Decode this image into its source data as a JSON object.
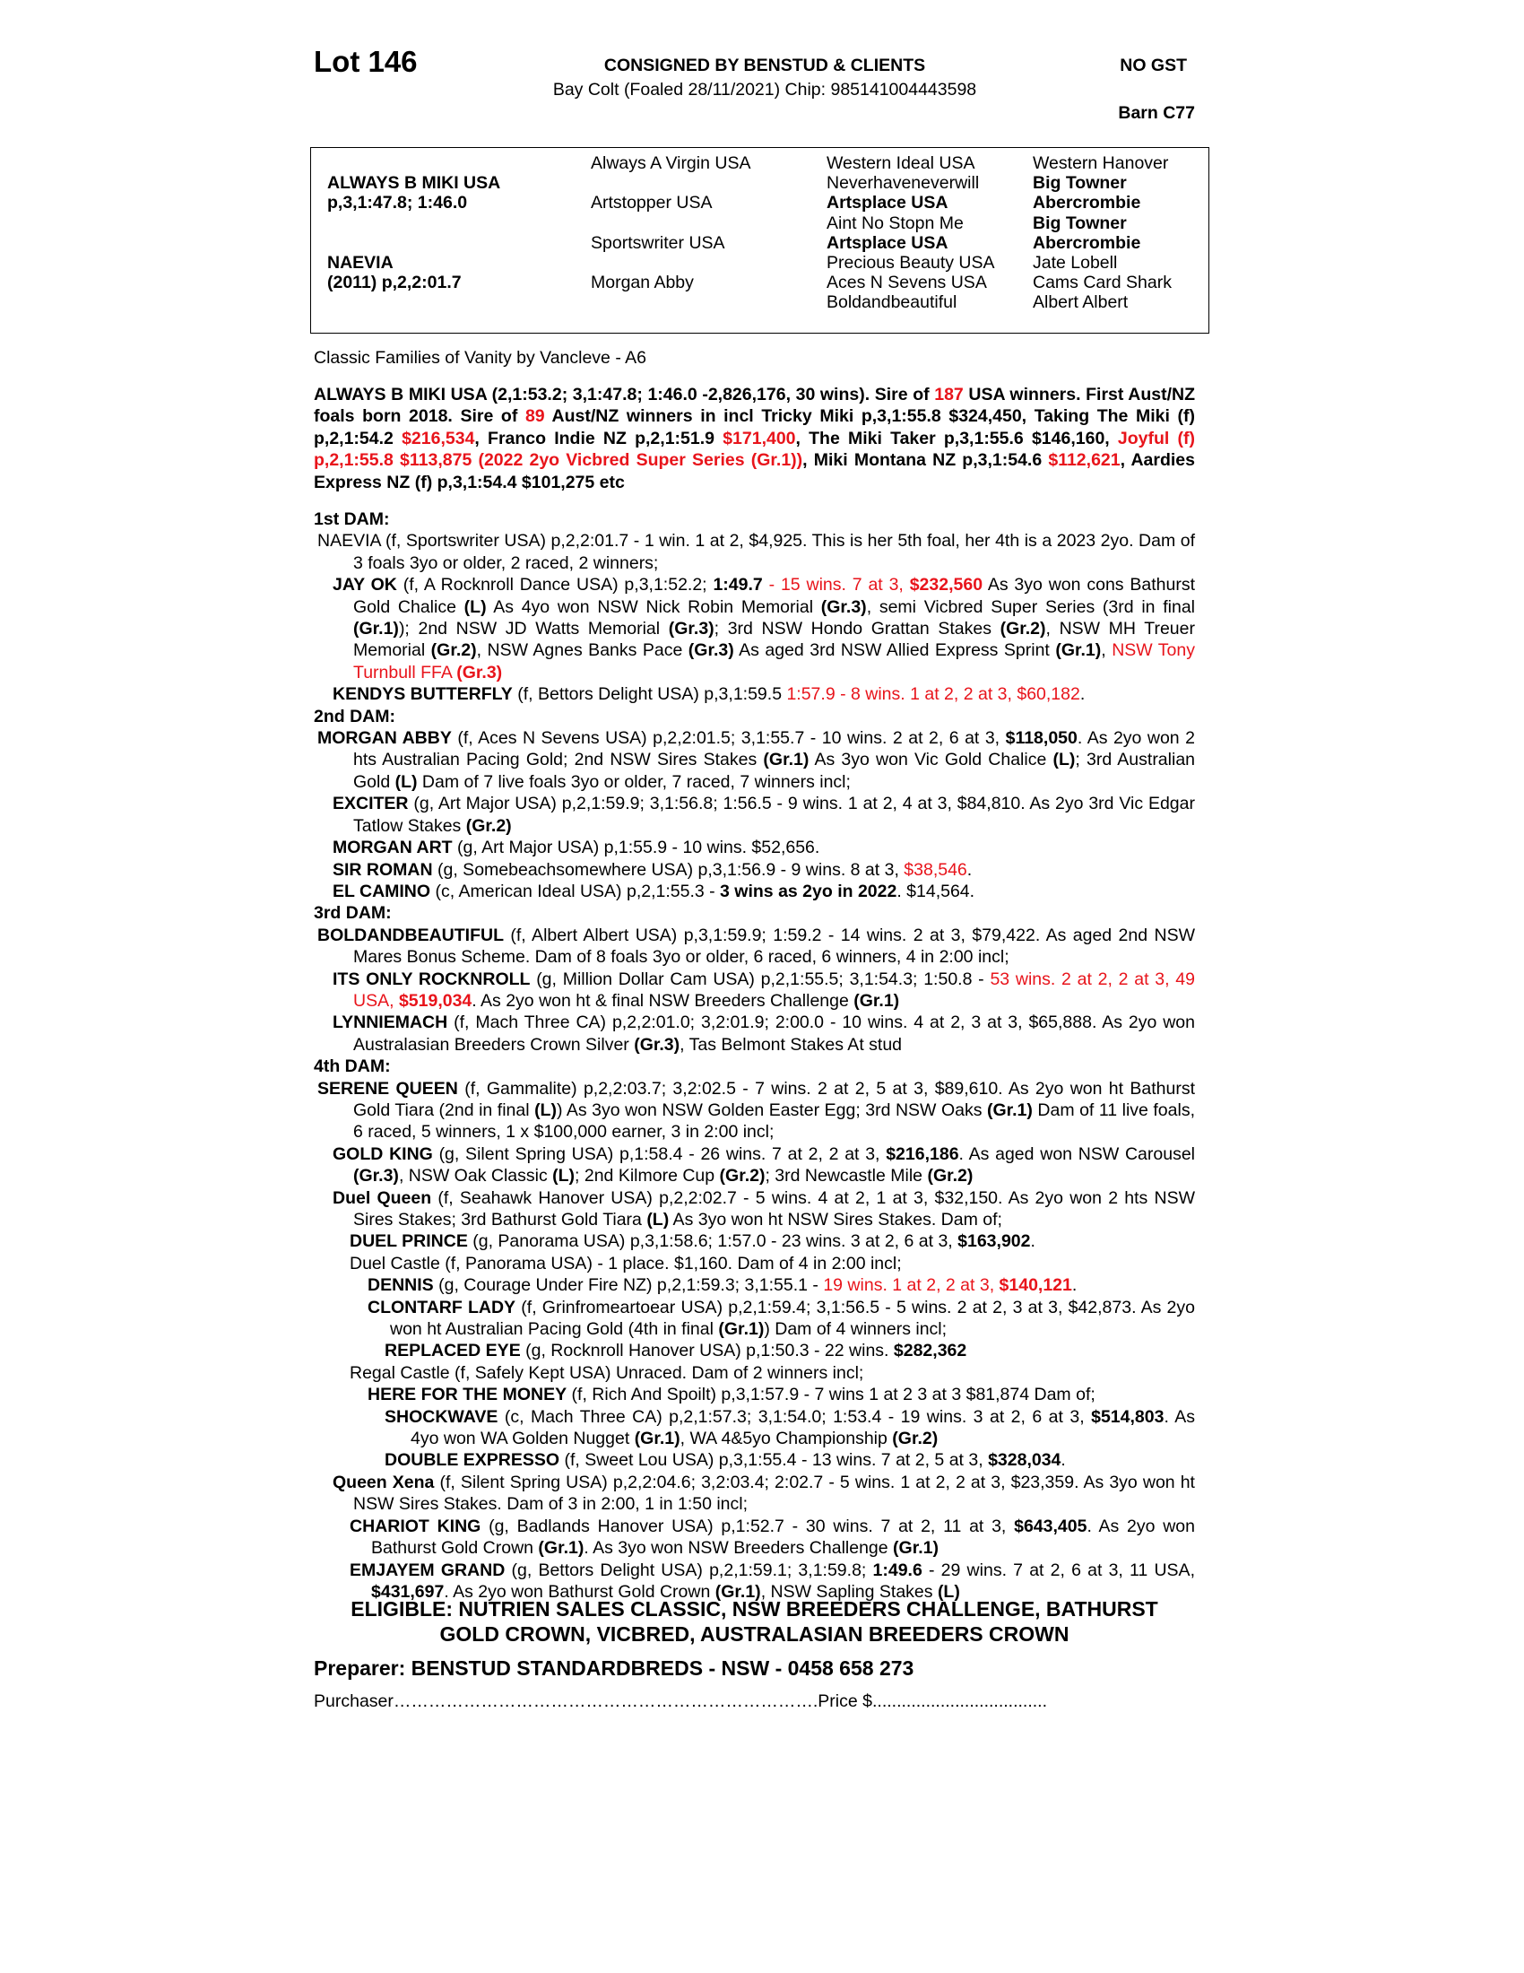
{
  "header": {
    "lot": "Lot 146",
    "consigned": "CONSIGNED BY BENSTUD & CLIENTS",
    "gst": "NO GST",
    "description": "Bay Colt (Foaled 28/11/2021) Chip: 985141004443598",
    "barn": "Barn C77"
  },
  "pedigree": {
    "col1": [
      {
        "row": 2,
        "t": "ALWAYS B MIKI USA",
        "b": true
      },
      {
        "row": 3,
        "t": "p,3,1:47.8; 1:46.0",
        "b": true
      },
      {
        "row": 6,
        "t": "NAEVIA",
        "b": true
      },
      {
        "row": 7,
        "t": "(2011) p,2,2:01.7",
        "b": true
      }
    ],
    "col2": [
      {
        "row": 1,
        "t": "Always A Virgin USA",
        "b": false
      },
      {
        "row": 3,
        "t": "Artstopper USA",
        "b": false
      },
      {
        "row": 5,
        "t": "Sportswriter USA",
        "b": false
      },
      {
        "row": 7,
        "t": "Morgan Abby",
        "b": false
      }
    ],
    "col3": [
      {
        "row": 1,
        "t": "Western Ideal USA",
        "b": false
      },
      {
        "row": 2,
        "t": "Neverhaveneverwill",
        "b": false
      },
      {
        "row": 3,
        "t": "Artsplace USA",
        "b": true
      },
      {
        "row": 4,
        "t": "Aint No Stopn Me",
        "b": false
      },
      {
        "row": 5,
        "t": "Artsplace USA",
        "b": true
      },
      {
        "row": 6,
        "t": "Precious Beauty USA",
        "b": false
      },
      {
        "row": 7,
        "t": "Aces N Sevens USA",
        "b": false
      },
      {
        "row": 8,
        "t": "Boldandbeautiful",
        "b": false
      }
    ],
    "col4": [
      {
        "row": 1,
        "t": "Western Hanover",
        "b": false
      },
      {
        "row": 2,
        "t": "Big Towner",
        "b": true
      },
      {
        "row": 3,
        "t": "Abercrombie",
        "b": true
      },
      {
        "row": 4,
        "t": "Big Towner",
        "b": true
      },
      {
        "row": 5,
        "t": "Abercrombie",
        "b": true
      },
      {
        "row": 6,
        "t": "Jate Lobell",
        "b": false
      },
      {
        "row": 7,
        "t": "Cams Card Shark",
        "b": false
      },
      {
        "row": 8,
        "t": "Albert Albert",
        "b": false
      }
    ]
  },
  "family": "Classic Families of Vanity by Vancleve - A6",
  "colors": {
    "highlight": "#e8141b",
    "text": "#000000"
  },
  "sire_paragraph": [
    {
      "t": "ALWAYS B MIKI USA (2,1:53.2; 3,1:47.8; 1:46.0 -2,826,176, 30 wins). Sire of ",
      "s": "b"
    },
    {
      "t": "187",
      "s": "br"
    },
    {
      "t": " USA winners. First Aust/NZ foals born 2018. Sire of ",
      "s": "b"
    },
    {
      "t": "89",
      "s": "br"
    },
    {
      "t": " Aust/NZ winners in incl Tricky Miki p,3,1:55.8 $324,450, Taking The Miki (f) p,2,1:54.2 ",
      "s": "b"
    },
    {
      "t": "$216,534",
      "s": "br"
    },
    {
      "t": ", Franco Indie NZ p,2,1:51.9 ",
      "s": "b"
    },
    {
      "t": "$171,400",
      "s": "br"
    },
    {
      "t": ", The Miki Taker p,3,1:55.6 $146,160, ",
      "s": "b"
    },
    {
      "t": "Joyful (f) p,2,1:55.8 $113,875 (2022 2yo Vicbred Super Series (Gr.1))",
      "s": "br"
    },
    {
      "t": ", Miki Montana NZ p,3,1:54.6 ",
      "s": "b"
    },
    {
      "t": "$112,621",
      "s": "br"
    },
    {
      "t": ", Aardies Express NZ (f) p,3,1:54.4 $101,275 etc",
      "s": "b"
    }
  ],
  "sections": [
    {
      "lvl": "h",
      "runs": [
        {
          "t": "1st DAM:",
          "s": "b"
        }
      ]
    },
    {
      "lvl": "l0",
      "runs": [
        {
          "t": "NAEVIA (f, Sportswriter USA) p,2,2:01.7 - 1 win. 1 at 2, $4,925. This is her 5th foal, her 4th is a 2023 2yo. Dam of 3 foals 3yo or older, 2 raced, 2 winners;",
          "s": ""
        }
      ]
    },
    {
      "lvl": "l1",
      "runs": [
        {
          "t": "JAY OK",
          "s": "b"
        },
        {
          "t": " (f, A Rocknroll Dance USA) p,3,1:52.2; ",
          "s": ""
        },
        {
          "t": "1:49.7",
          "s": "b"
        },
        {
          "t": " - 15 wins. 7 at 3, ",
          "s": "r"
        },
        {
          "t": "$232,560",
          "s": "br"
        },
        {
          "t": " As 3yo won cons Bathurst Gold Chalice ",
          "s": ""
        },
        {
          "t": "(L)",
          "s": "b"
        },
        {
          "t": " As 4yo won NSW Nick Robin Memorial ",
          "s": ""
        },
        {
          "t": "(Gr.3)",
          "s": "b"
        },
        {
          "t": ", semi Vicbred Super Series (3rd in final ",
          "s": ""
        },
        {
          "t": "(Gr.1)",
          "s": "b"
        },
        {
          "t": "); 2nd NSW JD Watts Memorial ",
          "s": ""
        },
        {
          "t": "(Gr.3)",
          "s": "b"
        },
        {
          "t": "; 3rd NSW Hondo Grattan Stakes ",
          "s": ""
        },
        {
          "t": "(Gr.2)",
          "s": "b"
        },
        {
          "t": ", NSW MH Treuer Memorial ",
          "s": ""
        },
        {
          "t": "(Gr.2)",
          "s": "b"
        },
        {
          "t": ", NSW Agnes Banks Pace ",
          "s": ""
        },
        {
          "t": "(Gr.3)",
          "s": "b"
        },
        {
          "t": " As aged 3rd NSW Allied Express Sprint ",
          "s": ""
        },
        {
          "t": "(Gr.1)",
          "s": "b"
        },
        {
          "t": ", ",
          "s": ""
        },
        {
          "t": "NSW Tony Turnbull FFA ",
          "s": "r"
        },
        {
          "t": "(Gr.3)",
          "s": "br"
        }
      ]
    },
    {
      "lvl": "l1",
      "runs": [
        {
          "t": "KENDYS BUTTERFLY",
          "s": "b"
        },
        {
          "t": " (f, Bettors Delight USA) p,3,1:59.5 ",
          "s": ""
        },
        {
          "t": "1:57.9 - 8 wins. 1 at 2, 2 at 3, $60,182",
          "s": "r"
        },
        {
          "t": ".",
          "s": ""
        }
      ]
    },
    {
      "lvl": "h",
      "runs": [
        {
          "t": "2nd DAM:",
          "s": "b"
        }
      ]
    },
    {
      "lvl": "l0",
      "runs": [
        {
          "t": "MORGAN ABBY",
          "s": "b"
        },
        {
          "t": " (f, Aces N Sevens USA) p,2,2:01.5; 3,1:55.7 - 10 wins. 2 at 2, 6 at 3, ",
          "s": ""
        },
        {
          "t": "$118,050",
          "s": "b"
        },
        {
          "t": ". As 2yo won 2 hts Australian Pacing Gold; 2nd NSW Sires Stakes ",
          "s": ""
        },
        {
          "t": "(Gr.1)",
          "s": "b"
        },
        {
          "t": " As 3yo won Vic Gold Chalice ",
          "s": ""
        },
        {
          "t": "(L)",
          "s": "b"
        },
        {
          "t": "; 3rd Australian Gold ",
          "s": ""
        },
        {
          "t": "(L)",
          "s": "b"
        },
        {
          "t": " Dam of 7 live foals 3yo or older, 7 raced, 7 winners incl;",
          "s": ""
        }
      ]
    },
    {
      "lvl": "l1",
      "runs": [
        {
          "t": "EXCITER",
          "s": "b"
        },
        {
          "t": " (g, Art Major USA) p,2,1:59.9; 3,1:56.8; 1:56.5 - 9 wins. 1 at 2, 4 at 3, $84,810. As 2yo 3rd Vic Edgar Tatlow Stakes ",
          "s": ""
        },
        {
          "t": "(Gr.2)",
          "s": "b"
        }
      ]
    },
    {
      "lvl": "l1",
      "runs": [
        {
          "t": "MORGAN ART",
          "s": "b"
        },
        {
          "t": " (g, Art Major USA) p,1:55.9 - 10 wins. $52,656.",
          "s": ""
        }
      ]
    },
    {
      "lvl": "l1",
      "runs": [
        {
          "t": "SIR ROMAN",
          "s": "b"
        },
        {
          "t": " (g, Somebeachsomewhere USA) p,3,1:56.9 - 9 wins. 8 at 3, ",
          "s": ""
        },
        {
          "t": "$38,546",
          "s": "r"
        },
        {
          "t": ".",
          "s": ""
        }
      ]
    },
    {
      "lvl": "l1",
      "runs": [
        {
          "t": "EL CAMINO",
          "s": "b"
        },
        {
          "t": " (c, American Ideal USA) p,2,1:55.3 - ",
          "s": ""
        },
        {
          "t": "3 wins as 2yo in 2022",
          "s": "b"
        },
        {
          "t": ". $14,564.",
          "s": ""
        }
      ]
    },
    {
      "lvl": "h",
      "runs": [
        {
          "t": "3rd DAM:",
          "s": "b"
        }
      ]
    },
    {
      "lvl": "l0",
      "runs": [
        {
          "t": "BOLDANDBEAUTIFUL",
          "s": "b"
        },
        {
          "t": " (f, Albert Albert USA) p,3,1:59.9; 1:59.2 - 14 wins. 2 at 3, $79,422. As aged 2nd NSW Mares Bonus Scheme. Dam of 8 foals 3yo or older, 6 raced, 6 winners, 4 in 2:00 incl;",
          "s": ""
        }
      ]
    },
    {
      "lvl": "l1",
      "runs": [
        {
          "t": "ITS ONLY ROCKNROLL",
          "s": "b"
        },
        {
          "t": " (g, Million Dollar Cam USA) p,2,1:55.5; 3,1:54.3; 1:50.8 - ",
          "s": ""
        },
        {
          "t": "53 wins. 2 at 2, 2 at 3, 49 USA, ",
          "s": "r"
        },
        {
          "t": "$519,034",
          "s": "br"
        },
        {
          "t": ". As 2yo won ht & final NSW Breeders Challenge ",
          "s": ""
        },
        {
          "t": "(Gr.1)",
          "s": "b"
        }
      ]
    },
    {
      "lvl": "l1",
      "runs": [
        {
          "t": "LYNNIEMACH",
          "s": "b"
        },
        {
          "t": " (f, Mach Three CA) p,2,2:01.0; 3,2:01.9; 2:00.0 - 10 wins. 4 at 2, 3 at 3, $65,888. As 2yo won Australasian Breeders Crown Silver ",
          "s": ""
        },
        {
          "t": "(Gr.3)",
          "s": "b"
        },
        {
          "t": ", Tas Belmont Stakes At stud",
          "s": ""
        }
      ]
    },
    {
      "lvl": "h",
      "runs": [
        {
          "t": "4th DAM:",
          "s": "b"
        }
      ]
    },
    {
      "lvl": "l0",
      "runs": [
        {
          "t": "SERENE QUEEN",
          "s": "b"
        },
        {
          "t": " (f, Gammalite) p,2,2:03.7; 3,2:02.5 - 7 wins. 2 at 2, 5 at 3, $89,610. As 2yo won ht Bathurst Gold Tiara (2nd in final ",
          "s": ""
        },
        {
          "t": "(L)",
          "s": "b"
        },
        {
          "t": ") As 3yo won NSW Golden Easter Egg; 3rd NSW Oaks ",
          "s": ""
        },
        {
          "t": "(Gr.1)",
          "s": "b"
        },
        {
          "t": " Dam of 11 live foals, 6 raced, 5 winners, 1 x $100,000 earner, 3 in 2:00 incl;",
          "s": ""
        }
      ]
    },
    {
      "lvl": "l1",
      "runs": [
        {
          "t": "GOLD KING",
          "s": "b"
        },
        {
          "t": " (g, Silent Spring USA) p,1:58.4 - 26 wins. 7 at 2, 2 at 3, ",
          "s": ""
        },
        {
          "t": "$216,186",
          "s": "b"
        },
        {
          "t": ". As aged won NSW Carousel ",
          "s": ""
        },
        {
          "t": "(Gr.3)",
          "s": "b"
        },
        {
          "t": ", NSW Oak Classic ",
          "s": ""
        },
        {
          "t": "(L)",
          "s": "b"
        },
        {
          "t": "; 2nd Kilmore Cup ",
          "s": ""
        },
        {
          "t": "(Gr.2)",
          "s": "b"
        },
        {
          "t": "; 3rd Newcastle Mile ",
          "s": ""
        },
        {
          "t": "(Gr.2)",
          "s": "b"
        }
      ]
    },
    {
      "lvl": "l1",
      "runs": [
        {
          "t": "Duel Queen",
          "s": "b"
        },
        {
          "t": " (f, Seahawk Hanover USA) p,2,2:02.7 - 5 wins. 4 at 2, 1 at 3, $32,150. As 2yo won 2 hts NSW Sires Stakes; 3rd Bathurst Gold Tiara ",
          "s": ""
        },
        {
          "t": "(L)",
          "s": "b"
        },
        {
          "t": " As 3yo won ht NSW Sires Stakes. Dam of;",
          "s": ""
        }
      ]
    },
    {
      "lvl": "l2",
      "runs": [
        {
          "t": "DUEL PRINCE",
          "s": "b"
        },
        {
          "t": " (g, Panorama USA) p,3,1:58.6; 1:57.0 - 23 wins. 3 at 2, 6 at 3, ",
          "s": ""
        },
        {
          "t": "$163,902",
          "s": "b"
        },
        {
          "t": ".",
          "s": ""
        }
      ]
    },
    {
      "lvl": "l2",
      "runs": [
        {
          "t": "Duel Castle (f, Panorama USA) - 1 place. $1,160. Dam of 4 in 2:00 incl;",
          "s": ""
        }
      ]
    },
    {
      "lvl": "l3",
      "runs": [
        {
          "t": "DENNIS",
          "s": "b"
        },
        {
          "t": " (g, Courage Under Fire NZ) p,2,1:59.3; 3,1:55.1 - ",
          "s": ""
        },
        {
          "t": "19 wins. 1 at 2, 2 at 3, ",
          "s": "r"
        },
        {
          "t": "$140,121",
          "s": "br"
        },
        {
          "t": ".",
          "s": ""
        }
      ]
    },
    {
      "lvl": "l3",
      "runs": [
        {
          "t": "CLONTARF LADY",
          "s": "b"
        },
        {
          "t": " (f, Grinfromeartoear USA) p,2,1:59.4; 3,1:56.5 - 5 wins. 2 at 2, 3 at 3, $42,873. As 2yo won ht Australian Pacing Gold (4th in final ",
          "s": ""
        },
        {
          "t": "(Gr.1)",
          "s": "b"
        },
        {
          "t": ") Dam of 4 winners incl;",
          "s": ""
        }
      ]
    },
    {
      "lvl": "l4",
      "runs": [
        {
          "t": "REPLACED EYE",
          "s": "b"
        },
        {
          "t": " (g, Rocknroll Hanover USA) p,1:50.3 - 22 wins. ",
          "s": ""
        },
        {
          "t": "$282,362",
          "s": "b"
        }
      ]
    },
    {
      "lvl": "l2",
      "runs": [
        {
          "t": "Regal Castle (f, Safely Kept USA) Unraced. Dam of 2 winners incl;",
          "s": ""
        }
      ]
    },
    {
      "lvl": "l3",
      "runs": [
        {
          "t": "HERE FOR THE MONEY",
          "s": "b"
        },
        {
          "t": " (f, Rich And Spoilt) p,3,1:57.9 - 7 wins 1 at 2 3 at 3 $81,874 Dam of;",
          "s": ""
        }
      ]
    },
    {
      "lvl": "l4b",
      "runs": [
        {
          "t": "SHOCKWAVE",
          "s": "b"
        },
        {
          "t": " (c, Mach Three CA) p,2,1:57.3; 3,1:54.0; 1:53.4 - 19 wins. 3 at 2, 6 at 3, ",
          "s": ""
        },
        {
          "t": "$514,803",
          "s": "b"
        },
        {
          "t": ". As 4yo won WA Golden Nugget ",
          "s": ""
        },
        {
          "t": "(Gr.1)",
          "s": "b"
        },
        {
          "t": ", WA 4&5yo Championship ",
          "s": ""
        },
        {
          "t": "(Gr.2)",
          "s": "b"
        }
      ]
    },
    {
      "lvl": "l4",
      "runs": [
        {
          "t": "DOUBLE EXPRESSO",
          "s": "b"
        },
        {
          "t": " (f, Sweet Lou USA) p,3,1:55.4 - 13 wins. 7 at 2, 5 at 3, ",
          "s": ""
        },
        {
          "t": "$328,034",
          "s": "b"
        },
        {
          "t": ".",
          "s": ""
        }
      ]
    },
    {
      "lvl": "l1",
      "runs": [
        {
          "t": "Queen Xena",
          "s": "b"
        },
        {
          "t": " (f, Silent Spring USA) p,2,2:04.6; 3,2:03.4; 2:02.7 - 5 wins. 1 at 2, 2 at 3, $23,359. As 3yo won ht NSW Sires Stakes. Dam of 3 in 2:00, 1 in 1:50 incl;",
          "s": ""
        }
      ]
    },
    {
      "lvl": "l2b",
      "runs": [
        {
          "t": "CHARIOT KING",
          "s": "b"
        },
        {
          "t": " (g, Badlands Hanover USA) p,1:52.7 - 30 wins. 7 at 2, 11 at 3, ",
          "s": ""
        },
        {
          "t": "$643,405",
          "s": "b"
        },
        {
          "t": ". As 2yo won Bathurst Gold Crown ",
          "s": ""
        },
        {
          "t": "(Gr.1)",
          "s": "b"
        },
        {
          "t": ". As 3yo won NSW Breeders Challenge ",
          "s": ""
        },
        {
          "t": "(Gr.1)",
          "s": "b"
        }
      ]
    },
    {
      "lvl": "l2b",
      "runs": [
        {
          "t": "EMJAYEM GRAND",
          "s": "b"
        },
        {
          "t": " (g, Bettors Delight USA) p,2,1:59.1; 3,1:59.8; ",
          "s": ""
        },
        {
          "t": "1:49.6",
          "s": "b"
        },
        {
          "t": " - 29 wins. 7 at 2, 6 at 3, 11 USA, ",
          "s": ""
        },
        {
          "t": "$431,697",
          "s": "b"
        },
        {
          "t": ". As 2yo won Bathurst Gold Crown ",
          "s": ""
        },
        {
          "t": "(Gr.1)",
          "s": "b"
        },
        {
          "t": ", NSW Sapling Stakes ",
          "s": ""
        },
        {
          "t": "(L)",
          "s": "b"
        }
      ]
    }
  ],
  "footer": {
    "eligible_line1": "ELIGIBLE: NUTRIEN SALES CLASSIC, NSW BREEDERS CHALLENGE, BATHURST",
    "eligible_line2": "GOLD CROWN, VICBRED, AUSTRALASIAN BREEDERS CROWN",
    "preparer": "Preparer: BENSTUD STANDARDBREDS - NSW - 0458 658 273",
    "purchaser": "Purchaser……………………………………………………………….Price $...................................."
  }
}
